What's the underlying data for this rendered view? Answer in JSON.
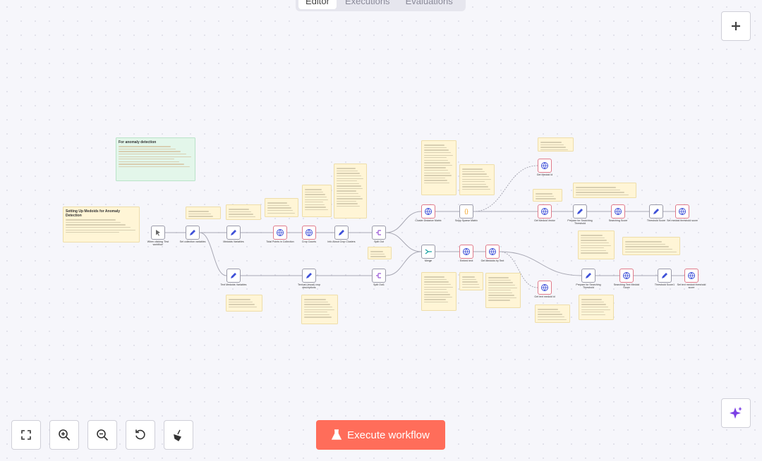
{
  "tabs": [
    "Editor",
    "Executions",
    "Evaluations"
  ],
  "nodes": [
    {
      "label": "When clicking 'Test workflow'"
    },
    {
      "label": "Set collection variables"
    },
    {
      "label": "Medoids Variables"
    },
    {
      "label": "Total Points in Collection"
    },
    {
      "label": "Crop Counts"
    },
    {
      "label": "Info About Crop Clusters"
    },
    {
      "label": "Split Out"
    },
    {
      "label": "Text Medoids Variables"
    },
    {
      "label": "Textual (visual) crop descriptions"
    },
    {
      "label": "Split Out1"
    },
    {
      "label": "Cluster Distance Matrix"
    },
    {
      "label": "Scipy Sparse Matrix"
    },
    {
      "label": "Get Medoid Id"
    },
    {
      "label": "Get Medoid Vector"
    },
    {
      "label": "Prepare for Searching Threshold"
    },
    {
      "label": "Searching Score"
    },
    {
      "label": "Threshold Score"
    },
    {
      "label": "Set medoid threshold score"
    },
    {
      "label": "Merge"
    },
    {
      "label": "Embed text"
    },
    {
      "label": "Get Medoids by Text"
    },
    {
      "label": "Get text medoid id"
    },
    {
      "label": "Prepare for Searching Threshold"
    },
    {
      "label": "Searching Text Medoid Score"
    },
    {
      "label": "Threshold Score1"
    },
    {
      "label": "Set text medoid threshold score"
    }
  ],
  "sticky_notes": [
    {
      "title": "For anomaly detection"
    },
    {
      "title": "Setting Up Medoids for Anomaly Detection"
    }
  ],
  "execute_button": "Execute workflow"
}
